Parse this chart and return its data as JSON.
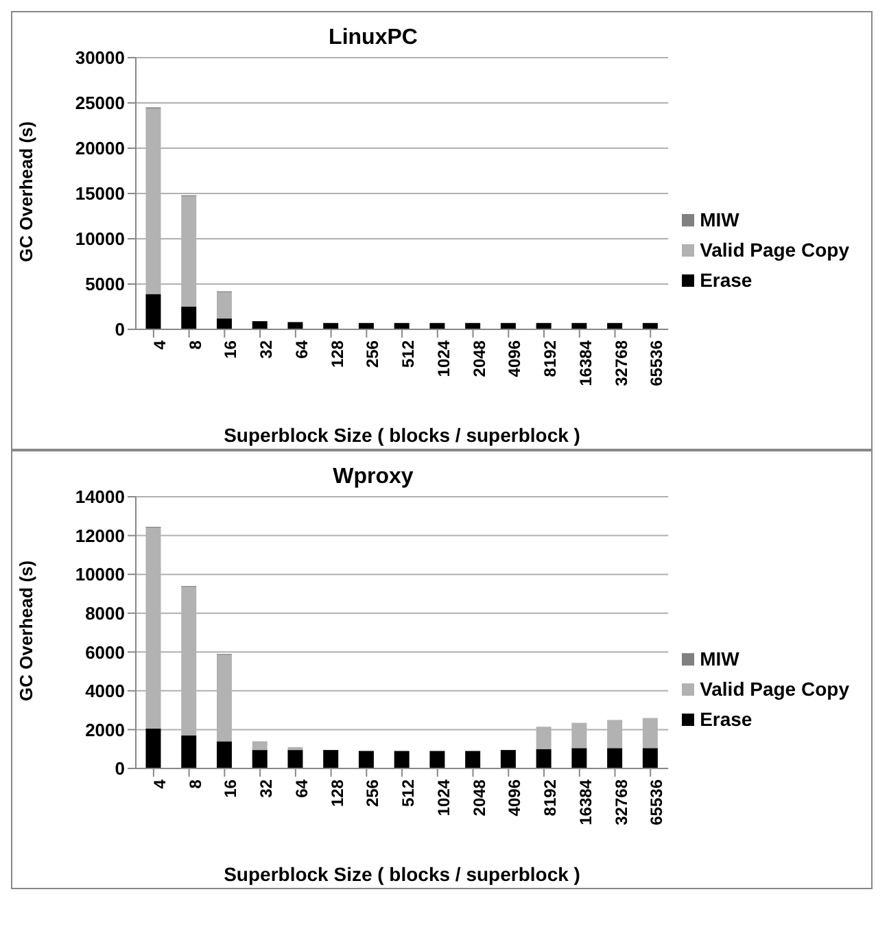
{
  "chart_data": [
    {
      "type": "bar",
      "title": "LinuxPC",
      "xlabel": "Superblock Size ( blocks / superblock )",
      "ylabel": "GC Overhead (s)",
      "categories": [
        "4",
        "8",
        "16",
        "32",
        "64",
        "128",
        "256",
        "512",
        "1024",
        "2048",
        "4096",
        "8192",
        "16384",
        "32768",
        "65536"
      ],
      "stacked": true,
      "ylim": [
        0,
        30000
      ],
      "yticks": [
        0,
        5000,
        10000,
        15000,
        20000,
        25000,
        30000
      ],
      "grid": "y",
      "legend": "right",
      "series": [
        {
          "name": "Erase",
          "color": "#000000",
          "values": [
            3900,
            2500,
            1200,
            900,
            800,
            700,
            700,
            700,
            700,
            700,
            700,
            700,
            700,
            700,
            700
          ]
        },
        {
          "name": "Valid Page Copy",
          "color": "#b2b2b2",
          "values": [
            20500,
            12200,
            2900,
            0,
            0,
            0,
            0,
            0,
            0,
            0,
            0,
            0,
            0,
            0,
            0
          ]
        },
        {
          "name": "MIW",
          "color": "#808080",
          "values": [
            100,
            100,
            100,
            0,
            0,
            0,
            0,
            0,
            0,
            0,
            0,
            0,
            0,
            0,
            0
          ]
        }
      ]
    },
    {
      "type": "bar",
      "title": "Wproxy",
      "xlabel": "Superblock Size ( blocks / superblock )",
      "ylabel": "GC Overhead (s)",
      "categories": [
        "4",
        "8",
        "16",
        "32",
        "64",
        "128",
        "256",
        "512",
        "1024",
        "2048",
        "4096",
        "8192",
        "16384",
        "32768",
        "65536"
      ],
      "stacked": true,
      "ylim": [
        0,
        14000
      ],
      "yticks": [
        0,
        2000,
        4000,
        6000,
        8000,
        10000,
        12000,
        14000
      ],
      "grid": "y",
      "legend": "right",
      "series": [
        {
          "name": "Erase",
          "color": "#000000",
          "values": [
            2050,
            1700,
            1400,
            950,
            950,
            950,
            900,
            900,
            900,
            900,
            950,
            1000,
            1050,
            1050,
            1050
          ]
        },
        {
          "name": "Valid Page Copy",
          "color": "#b2b2b2",
          "values": [
            10350,
            7650,
            4450,
            450,
            150,
            0,
            0,
            0,
            0,
            0,
            0,
            1150,
            1300,
            1450,
            1550
          ]
        },
        {
          "name": "MIW",
          "color": "#808080",
          "values": [
            50,
            50,
            50,
            0,
            0,
            0,
            0,
            0,
            0,
            0,
            0,
            0,
            0,
            0,
            0
          ]
        }
      ]
    }
  ]
}
